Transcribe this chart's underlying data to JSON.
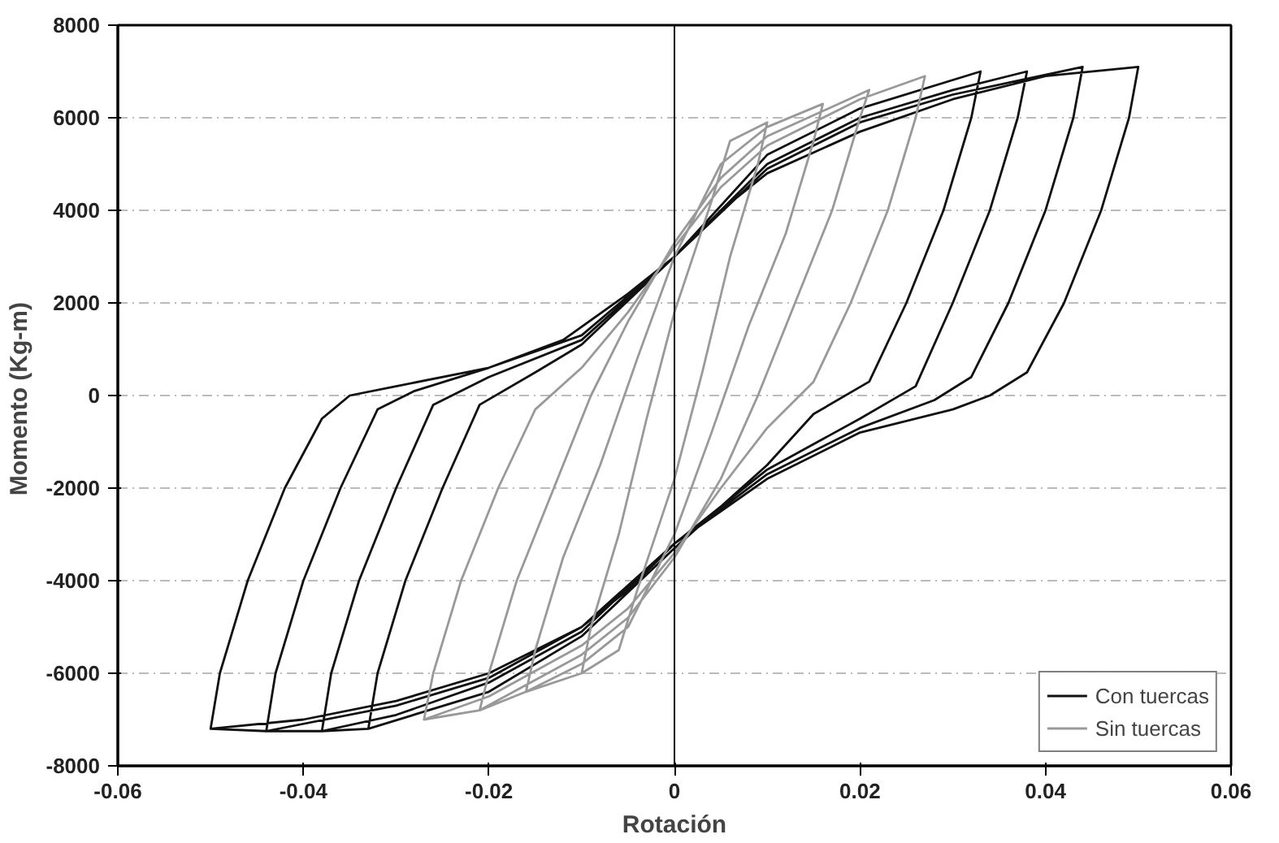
{
  "chart_data": {
    "type": "line",
    "xlabel": "Rotación",
    "ylabel": "Momento  (Kg-m)",
    "xlim": [
      -0.06,
      0.06
    ],
    "ylim": [
      -8000,
      8000
    ],
    "xticks": [
      -0.06,
      -0.04,
      -0.02,
      0,
      0.02,
      0.04,
      0.06
    ],
    "yticks": [
      -8000,
      -6000,
      -4000,
      -2000,
      0,
      2000,
      4000,
      6000,
      8000
    ],
    "grid": "y",
    "legend": "bottom right",
    "line_style": "solid",
    "ref_lines": [
      {
        "axis": "x",
        "value": 0,
        "label": null,
        "color": "#000000"
      }
    ],
    "series": [
      {
        "name": "Con tuercas",
        "color": "#111111",
        "x": [
          -0.05,
          -0.049,
          -0.046,
          -0.042,
          -0.038,
          -0.035,
          -0.03,
          -0.02,
          -0.012,
          -0.005,
          0,
          0.005,
          0.01,
          0.02,
          0.03,
          0.04,
          0.05,
          0.049,
          0.046,
          0.042,
          0.038,
          0.034,
          0.03,
          0.02,
          0.01,
          0.005,
          0,
          -0.005,
          -0.01,
          -0.02,
          -0.03,
          -0.04,
          -0.05,
          -0.044,
          -0.043,
          -0.04,
          -0.036,
          -0.032,
          -0.028,
          -0.02,
          -0.01,
          0,
          0.01,
          0.02,
          0.03,
          0.044,
          0.043,
          0.04,
          0.036,
          0.032,
          0.028,
          0.02,
          0.01,
          0,
          -0.01,
          -0.02,
          -0.03,
          -0.044,
          -0.038,
          -0.037,
          -0.034,
          -0.03,
          -0.026,
          -0.02,
          -0.01,
          0,
          0.01,
          0.02,
          0.03,
          0.038,
          0.037,
          0.034,
          0.03,
          0.026,
          0.02,
          0.01,
          0,
          -0.01,
          -0.02,
          -0.03,
          -0.038,
          -0.033,
          -0.032,
          -0.029,
          -0.025,
          -0.021,
          -0.015,
          -0.01,
          0,
          0.01,
          0.02,
          0.033,
          0.032,
          0.029,
          0.025,
          0.021,
          0.015,
          0.01,
          0,
          -0.01,
          -0.02,
          -0.033
        ],
        "values": [
          -7200,
          -6000,
          -4000,
          -2000,
          -500,
          0,
          200,
          600,
          1200,
          2200,
          3000,
          4000,
          4800,
          5700,
          6400,
          6900,
          7100,
          6000,
          4000,
          2000,
          500,
          0,
          -300,
          -800,
          -1800,
          -2500,
          -3200,
          -4200,
          -5000,
          -6000,
          -6600,
          -7000,
          -7200,
          -7250,
          -6000,
          -4000,
          -2000,
          -300,
          100,
          600,
          1300,
          3000,
          4900,
          5900,
          6500,
          7100,
          6000,
          4000,
          2000,
          400,
          -100,
          -700,
          -1700,
          -3200,
          -5000,
          -6100,
          -6700,
          -7250,
          -7250,
          -6000,
          -4000,
          -2000,
          -200,
          400,
          1200,
          3000,
          5000,
          6000,
          6600,
          7000,
          6000,
          4000,
          2000,
          200,
          -500,
          -1600,
          -3200,
          -5100,
          -6200,
          -6900,
          -7250,
          -7200,
          -6000,
          -4000,
          -2000,
          -200,
          500,
          1100,
          3000,
          5200,
          6200,
          7000,
          6000,
          4000,
          2000,
          300,
          -400,
          -1500,
          -3300,
          -5200,
          -6400,
          -7200
        ]
      },
      {
        "name": "Sin tuercas",
        "color": "#999999",
        "x": [
          -0.027,
          -0.026,
          -0.023,
          -0.019,
          -0.015,
          -0.01,
          -0.005,
          0,
          0.005,
          0.01,
          0.02,
          0.027,
          0.026,
          0.023,
          0.019,
          0.015,
          0.01,
          0.005,
          0,
          -0.005,
          -0.01,
          -0.02,
          -0.027,
          -0.021,
          -0.02,
          -0.017,
          -0.013,
          -0.009,
          -0.005,
          0,
          0.005,
          0.01,
          0.021,
          0.02,
          0.017,
          0.013,
          0.009,
          0.005,
          0,
          -0.005,
          -0.01,
          -0.021,
          -0.016,
          -0.015,
          -0.012,
          -0.008,
          -0.004,
          0,
          0.005,
          0.01,
          0.016,
          0.015,
          0.012,
          0.008,
          0.004,
          0,
          -0.005,
          -0.01,
          -0.016,
          -0.01,
          -0.009,
          -0.006,
          -0.003,
          0,
          0.004,
          0.006,
          0.01,
          0.009,
          0.006,
          0.003,
          0,
          -0.004,
          -0.006,
          -0.01
        ],
        "values": [
          -7000,
          -6000,
          -4000,
          -2000,
          -300,
          600,
          1800,
          3200,
          4500,
          5400,
          6400,
          6900,
          6000,
          4000,
          2000,
          300,
          -700,
          -2000,
          -3400,
          -4600,
          -5400,
          -6500,
          -7000,
          -6800,
          -6000,
          -4000,
          -2000,
          0,
          1600,
          3300,
          4700,
          5600,
          6600,
          6000,
          4000,
          2000,
          0,
          -1800,
          -3500,
          -4800,
          -5600,
          -6800,
          -6400,
          -5500,
          -3500,
          -1500,
          800,
          3000,
          5000,
          5800,
          6300,
          5500,
          3500,
          1500,
          -800,
          -3000,
          -5000,
          -5800,
          -6400,
          -6000,
          -5000,
          -3000,
          -500,
          1800,
          4200,
          5500,
          5900,
          5000,
          3000,
          500,
          -1800,
          -4200,
          -5500,
          -6000
        ]
      }
    ]
  }
}
